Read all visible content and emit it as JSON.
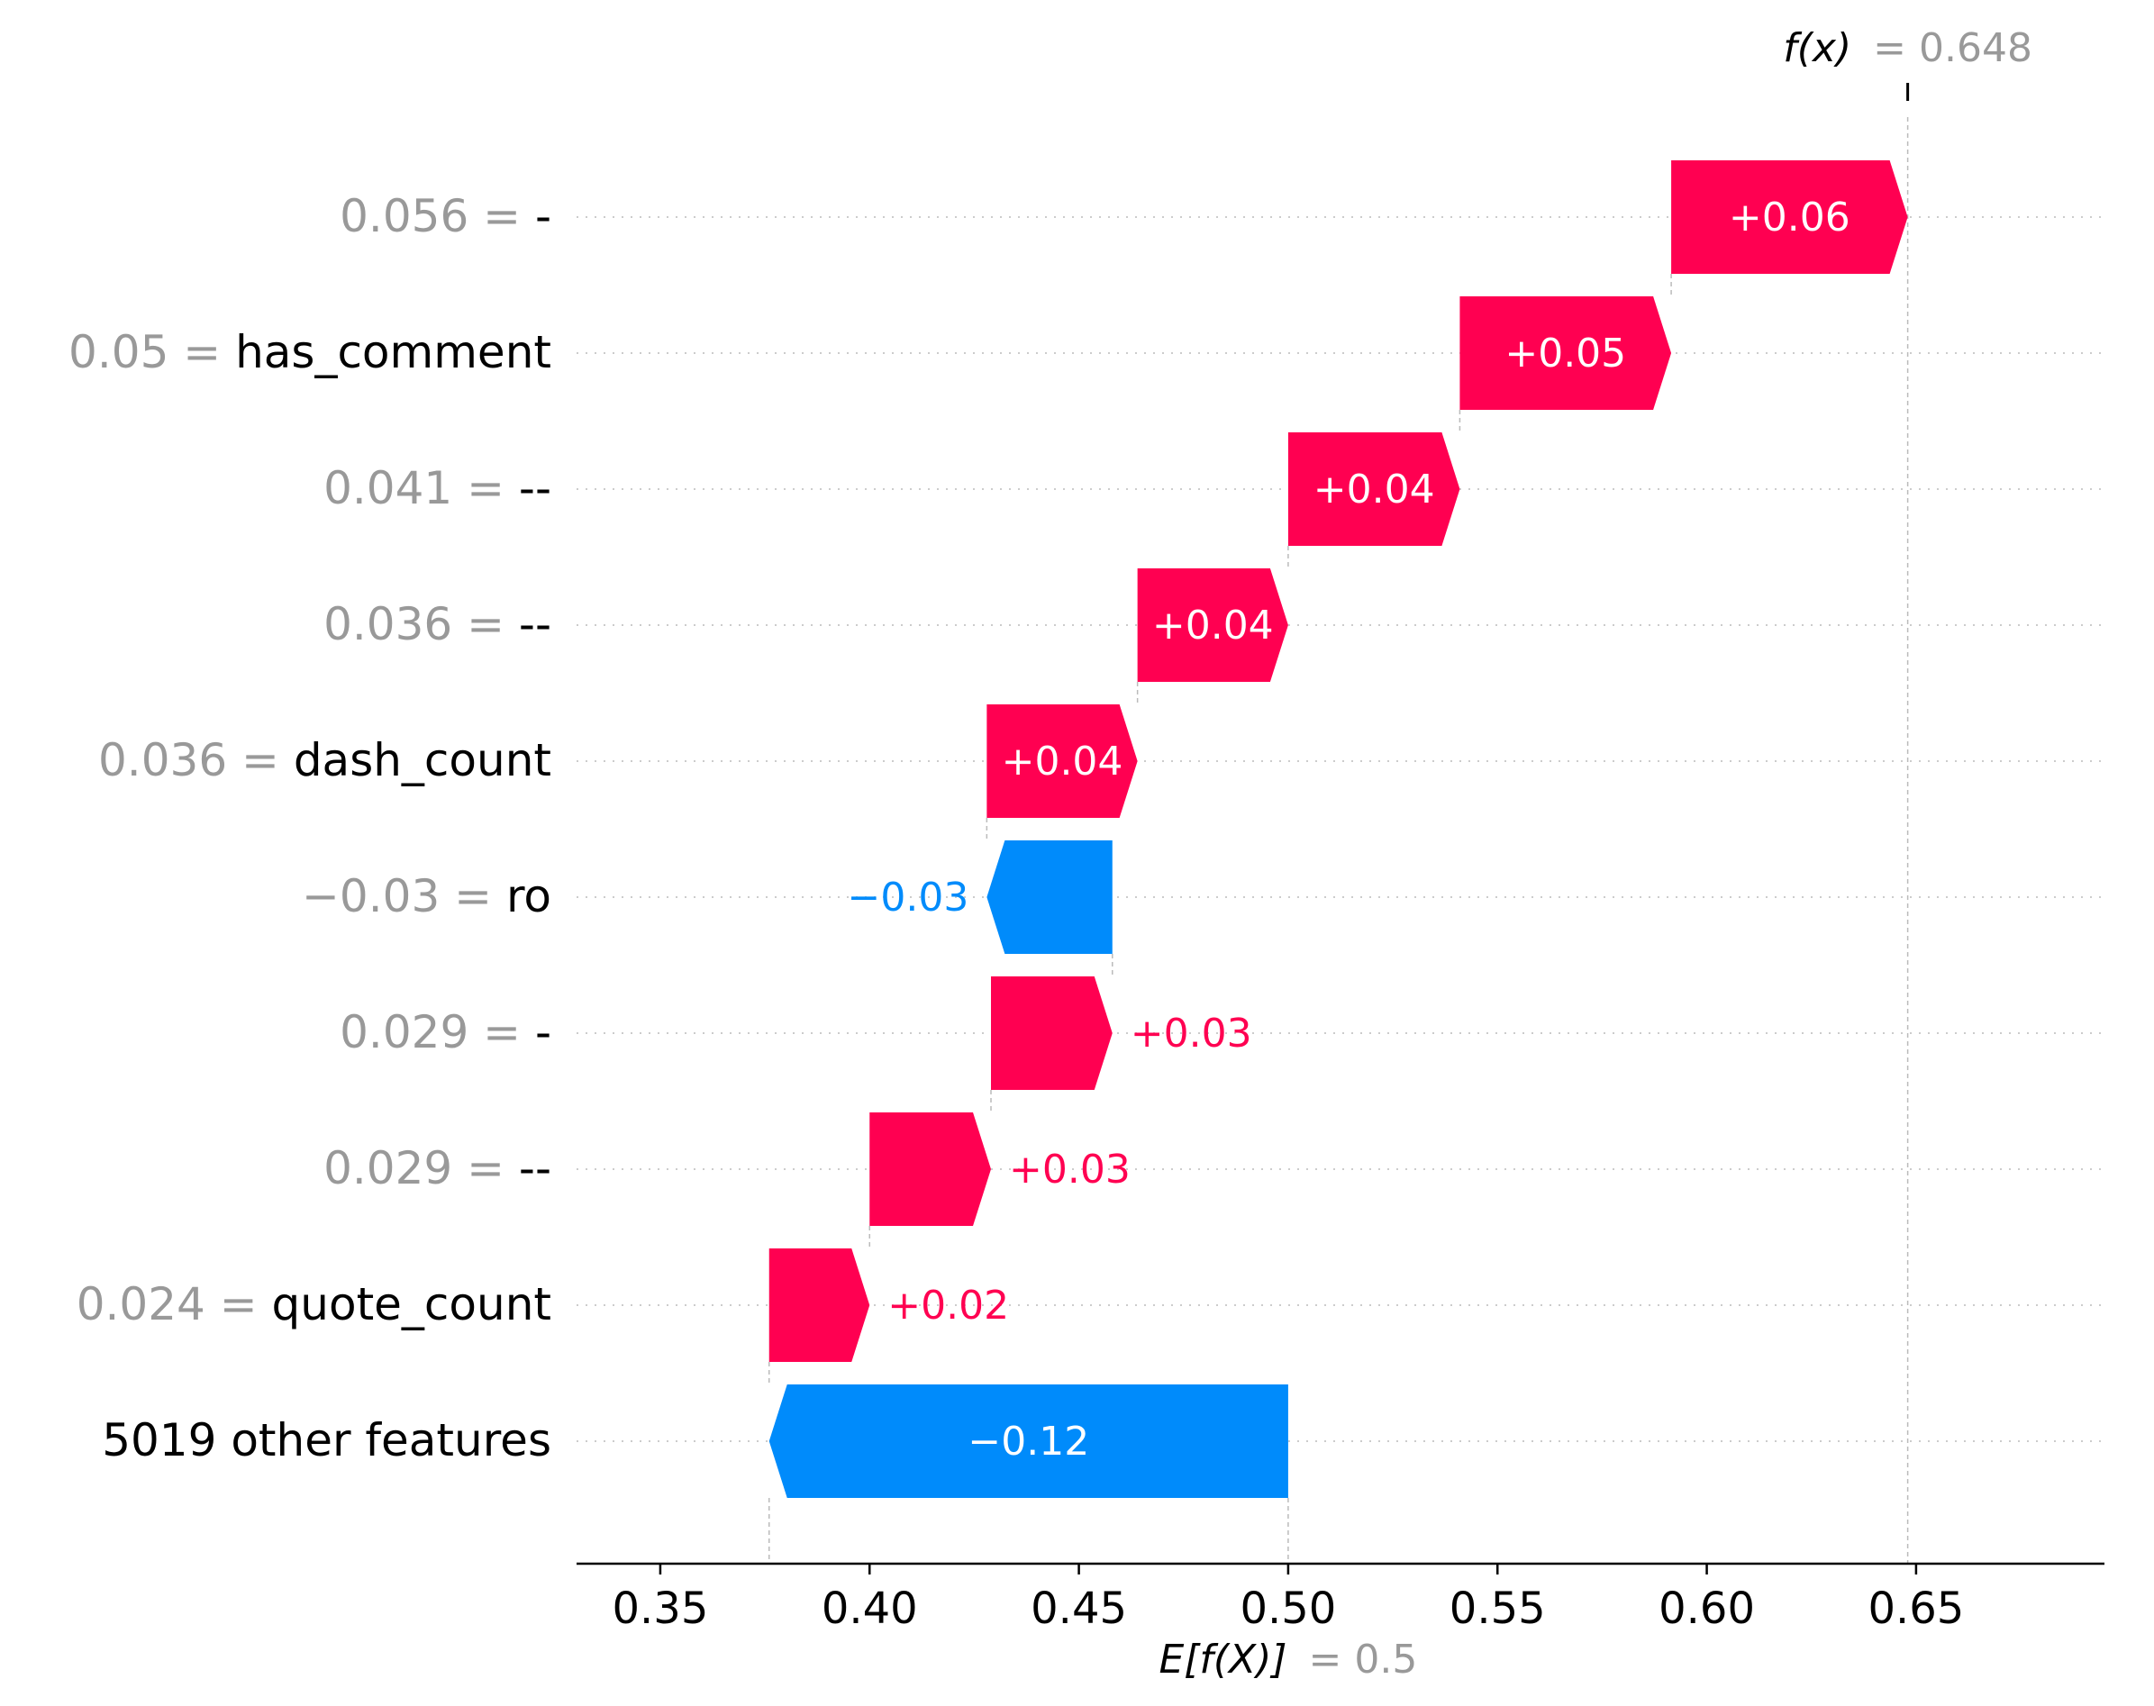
{
  "chart_data": {
    "type": "waterfall",
    "title": "",
    "xlabel": "",
    "ylabel": "",
    "xlim": [
      0.33,
      0.695
    ],
    "x_ticks": [
      0.35,
      0.4,
      0.45,
      0.5,
      0.55,
      0.6,
      0.65
    ],
    "x_tick_labels": [
      "0.35",
      "0.40",
      "0.45",
      "0.50",
      "0.55",
      "0.60",
      "0.65"
    ],
    "base_value": 0.5,
    "base_label_name": "E[f(X)]",
    "base_label_value": "= 0.5",
    "output_value": 0.648,
    "output_label_name": "f(x)",
    "output_label_value": "= 0.648",
    "colors": {
      "positive": "#ff0051",
      "negative": "#008bfb",
      "grey": "#999999"
    },
    "features": [
      {
        "value_text": "0.056 =",
        "name": "-",
        "start": 0.5915,
        "end": 0.648,
        "shap_label": "+0.06",
        "label_inside": true
      },
      {
        "value_text": "0.05 =",
        "name": "has_comment",
        "start": 0.541,
        "end": 0.5915,
        "shap_label": "+0.05",
        "label_inside": true
      },
      {
        "value_text": "0.041 =",
        "name": "--",
        "start": 0.5,
        "end": 0.541,
        "shap_label": "+0.04",
        "label_inside": true
      },
      {
        "value_text": "0.036 =",
        "name": "-- ",
        "start": 0.464,
        "end": 0.5,
        "shap_label": "+0.04",
        "label_inside": true
      },
      {
        "value_text": "0.036 =",
        "name": "dash_count",
        "start": 0.428,
        "end": 0.464,
        "shap_label": "+0.04",
        "label_inside": true
      },
      {
        "value_text": "−0.03 =",
        "name": "ro",
        "start": 0.458,
        "end": 0.428,
        "shap_label": "−0.03",
        "label_inside": false
      },
      {
        "value_text": "0.029 =",
        "name": " -",
        "start": 0.429,
        "end": 0.458,
        "shap_label": "+0.03",
        "label_inside": false
      },
      {
        "value_text": "0.029 =",
        "name": " --",
        "start": 0.4,
        "end": 0.429,
        "shap_label": "+0.03",
        "label_inside": false
      },
      {
        "value_text": "0.024 =",
        "name": "quote_count",
        "start": 0.376,
        "end": 0.4,
        "shap_label": "+0.02",
        "label_inside": false
      },
      {
        "value_text": "",
        "name": "5019 other features",
        "start": 0.5,
        "end": 0.376,
        "shap_label": "−0.12",
        "label_inside": true
      }
    ]
  }
}
